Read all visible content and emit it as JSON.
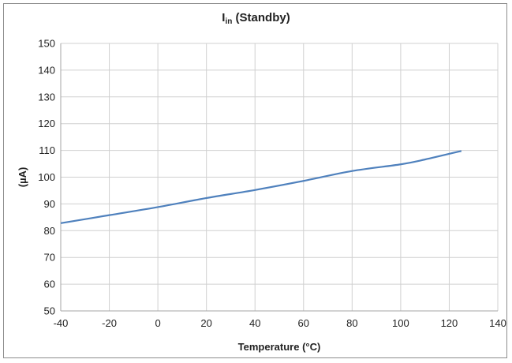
{
  "chart_data": {
    "type": "line",
    "title_main": "I",
    "title_sub": "in",
    "title_rest": " (Standby)",
    "xlabel": "Temperature (°C)",
    "ylabel": "(µA)",
    "xlim": [
      -40,
      140
    ],
    "ylim": [
      50,
      150
    ],
    "xticks": [
      -40,
      -20,
      0,
      20,
      40,
      60,
      80,
      100,
      120,
      140
    ],
    "yticks": [
      50,
      60,
      70,
      80,
      90,
      100,
      110,
      120,
      130,
      140,
      150
    ],
    "grid": true,
    "legend": "none",
    "series_color": "#4f81bd",
    "x": [
      -40,
      -20,
      0,
      20,
      40,
      60,
      80,
      100,
      110,
      125
    ],
    "y": [
      82.8,
      85.8,
      88.8,
      92.2,
      95.2,
      98.6,
      102.3,
      104.8,
      106.6,
      109.8
    ]
  }
}
